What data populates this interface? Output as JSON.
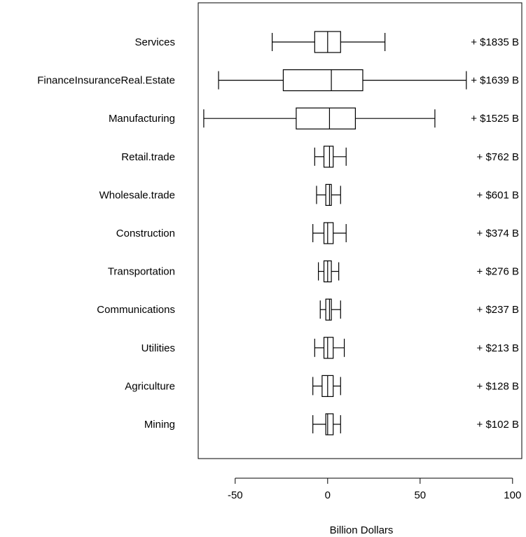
{
  "chart_data": {
    "type": "boxplot",
    "orientation": "horizontal",
    "xlabel": "Billion Dollars",
    "xlim": [
      -70,
      105
    ],
    "x_ticks": [
      -50,
      0,
      50,
      100
    ],
    "x_tick_labels": [
      "-50",
      "0",
      "50",
      "100"
    ],
    "categories": [
      "Services",
      "FinanceInsuranceReal.Estate",
      "Manufacturing",
      "Retail.trade",
      "Wholesale.trade",
      "Construction",
      "Transportation",
      "Communications",
      "Utilities",
      "Agriculture",
      "Mining"
    ],
    "totals": [
      "+ $1835 B",
      "+ $1639 B",
      "+ $1525 B",
      "+ $762 B",
      "+ $601 B",
      "+ $374 B",
      "+ $276 B",
      "+ $237 B",
      "+ $213 B",
      "+ $128 B",
      "+ $102 B"
    ],
    "boxes": [
      {
        "min": -30,
        "q1": -7,
        "median": 0,
        "q3": 7,
        "max": 31
      },
      {
        "min": -59,
        "q1": -24,
        "median": 2,
        "q3": 19,
        "max": 75
      },
      {
        "min": -67,
        "q1": -17,
        "median": 1,
        "q3": 15,
        "max": 58
      },
      {
        "min": -7,
        "q1": -2,
        "median": 1,
        "q3": 3,
        "max": 10
      },
      {
        "min": -6,
        "q1": -1,
        "median": 1,
        "q3": 2,
        "max": 7
      },
      {
        "min": -8,
        "q1": -2,
        "median": 0,
        "q3": 3,
        "max": 10
      },
      {
        "min": -5,
        "q1": -2,
        "median": 0,
        "q3": 2,
        "max": 6
      },
      {
        "min": -4,
        "q1": -1,
        "median": 1,
        "q3": 2,
        "max": 7
      },
      {
        "min": -7,
        "q1": -2,
        "median": 0,
        "q3": 3,
        "max": 9
      },
      {
        "min": -8,
        "q1": -3,
        "median": 0,
        "q3": 3,
        "max": 7
      },
      {
        "min": -8,
        "q1": -1,
        "median": 0,
        "q3": 3,
        "max": 7
      }
    ]
  }
}
